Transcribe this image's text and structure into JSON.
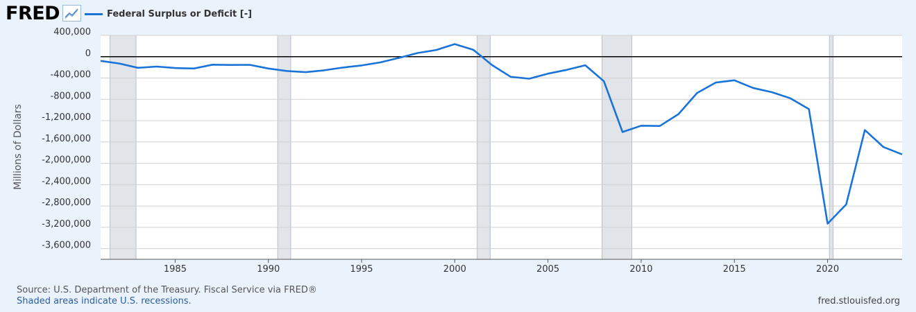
{
  "header": {
    "logo_text": "FRED",
    "legend_label": "Federal Surplus or Deficit [-]"
  },
  "colors": {
    "series": "#1a73d9",
    "recession": "#e1e5ea",
    "grid": "#d0d0d0",
    "zero_line": "#000000",
    "background": "#eaf2fb"
  },
  "footer": {
    "source": "Source: U.S. Department of the Treasury. Fiscal Service via FRED®",
    "note": "Shaded areas indicate U.S. recessions.",
    "url": "fred.stlouisfed.org"
  },
  "chart_data": {
    "type": "line",
    "title": "",
    "xlabel": "",
    "ylabel": "Millions of Dollars",
    "xlim": [
      1981.0,
      2024.0
    ],
    "ylim": [
      -3800000,
      400000
    ],
    "yticks": [
      400000,
      0,
      -400000,
      -800000,
      -1200000,
      -1600000,
      -2000000,
      -2400000,
      -2800000,
      -3200000,
      -3600000
    ],
    "ytick_labels": [
      "400,000",
      "0",
      "-400,000",
      "-800,000",
      "-1,200,000",
      "-1,600,000",
      "-2,000,000",
      "-2,400,000",
      "-2,800,000",
      "-3,200,000",
      "-3,600,000"
    ],
    "xticks": [
      1985,
      1990,
      1995,
      2000,
      2005,
      2010,
      2015,
      2020
    ],
    "xtick_labels": [
      "1985",
      "1990",
      "1995",
      "2000",
      "2005",
      "2010",
      "2015",
      "2020"
    ],
    "grid": true,
    "legend_position": "top-left",
    "recessions": [
      [
        1981.5,
        1982.9
      ],
      [
        1990.5,
        1991.2
      ],
      [
        2001.2,
        2001.9
      ],
      [
        2007.9,
        2009.5
      ],
      [
        2020.1,
        2020.3
      ]
    ],
    "series": [
      {
        "name": "Federal Surplus or Deficit [-]",
        "x": [
          1981,
          1982,
          1983,
          1984,
          1985,
          1986,
          1987,
          1988,
          1989,
          1990,
          1991,
          1992,
          1993,
          1994,
          1995,
          1996,
          1997,
          1998,
          1999,
          2000,
          2001,
          2002,
          2003,
          2004,
          2005,
          2006,
          2007,
          2008,
          2009,
          2010,
          2011,
          2012,
          2013,
          2014,
          2015,
          2016,
          2017,
          2018,
          2019,
          2020,
          2021,
          2022,
          2023,
          2024
        ],
        "values": [
          -79000,
          -128000,
          -208000,
          -185000,
          -212000,
          -221000,
          -150000,
          -155000,
          -153000,
          -221000,
          -269000,
          -290000,
          -255000,
          -203000,
          -164000,
          -107000,
          -22000,
          69000,
          126000,
          236000,
          128000,
          -158000,
          -378000,
          -413000,
          -318000,
          -248000,
          -161000,
          -459000,
          -1413000,
          -1294000,
          -1300000,
          -1077000,
          -680000,
          -485000,
          -442000,
          -585000,
          -665000,
          -779000,
          -984000,
          -3132000,
          -2772000,
          -1376000,
          -1695000,
          -1833000
        ]
      }
    ]
  }
}
